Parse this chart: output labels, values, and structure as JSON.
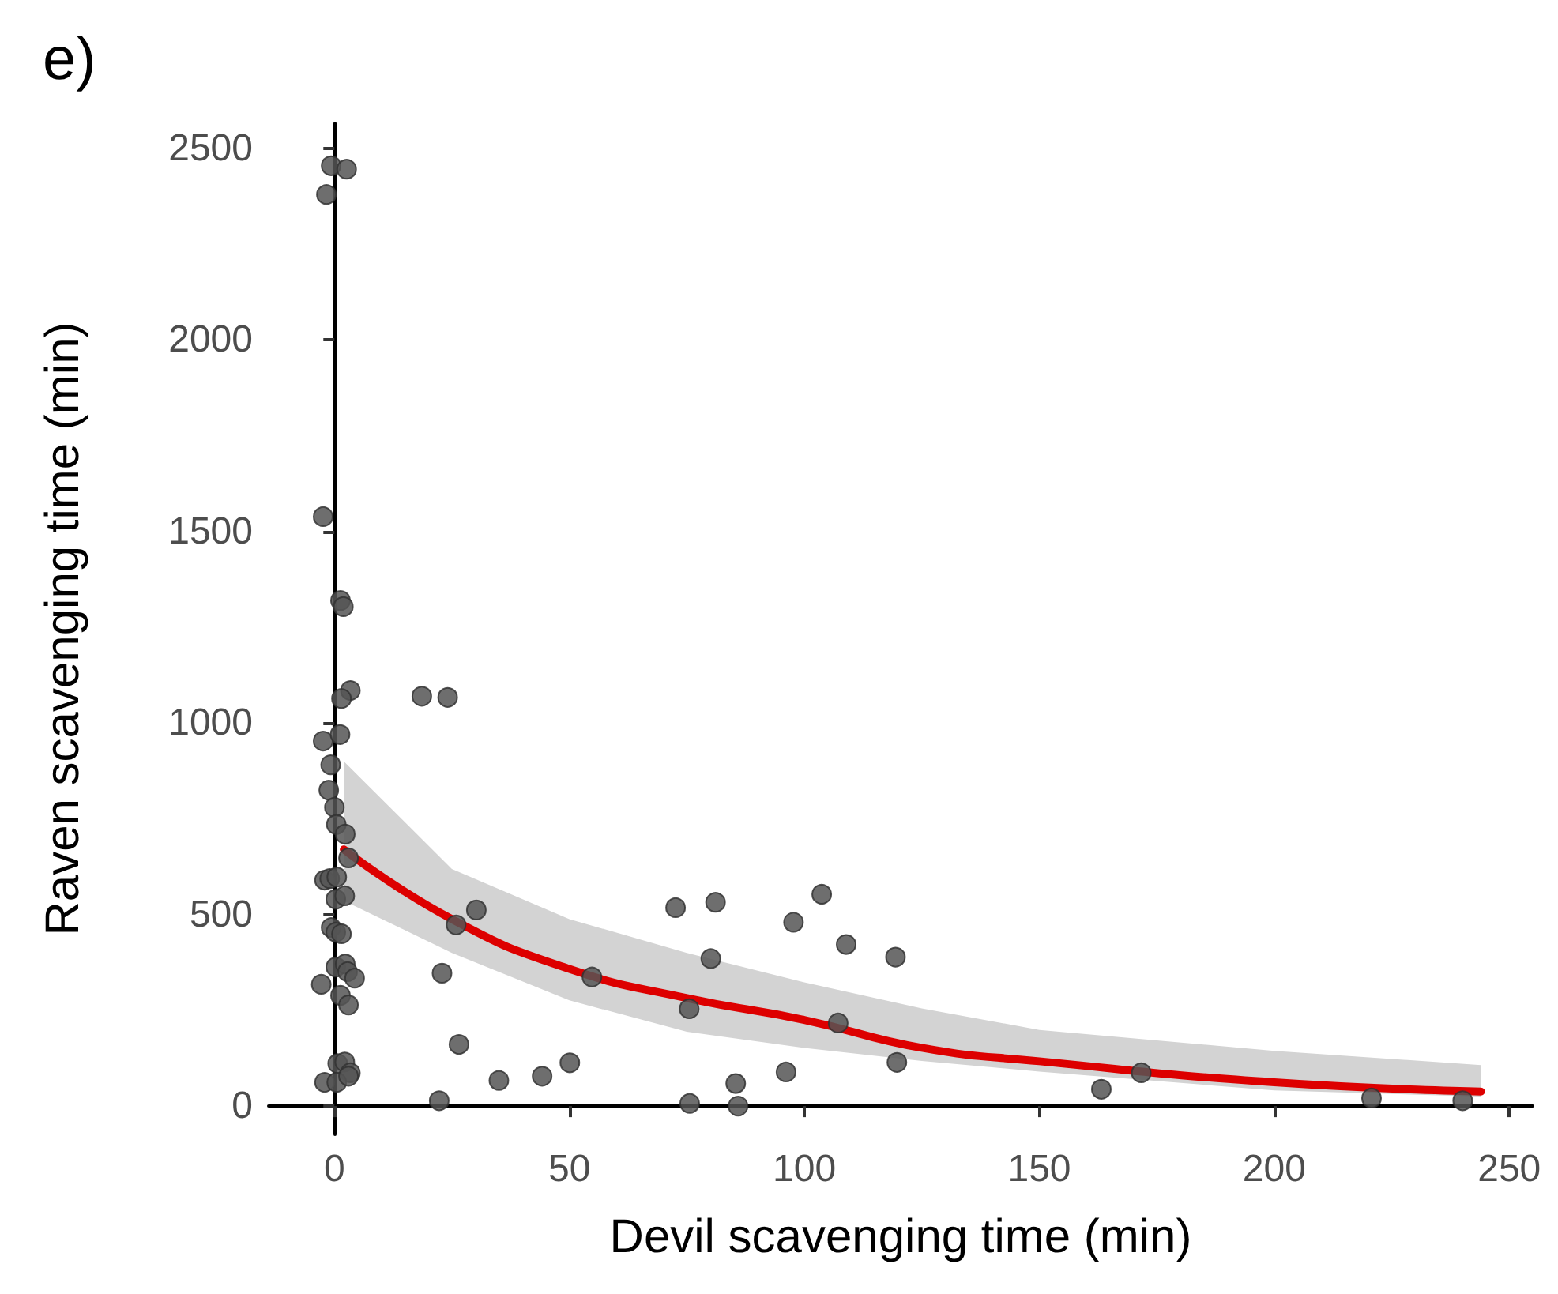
{
  "chart_data": {
    "type": "scatter",
    "title": "e)",
    "xlabel": "Devil scavenging time (min)",
    "ylabel": "Raven scavenging time (min)",
    "xlim": [
      -14,
      255
    ],
    "ylim": [
      -74,
      2566
    ],
    "xticks": [
      0,
      50,
      100,
      150,
      200,
      250
    ],
    "yticks": [
      0,
      500,
      1000,
      1500,
      2000,
      2500
    ],
    "grid": false,
    "series": [
      {
        "color": "#555555",
        "marker": "circle",
        "x": [
          -0.7,
          2.6,
          -1.7,
          -2.4,
          1.3,
          1.9,
          3.4,
          1.5,
          -2.4,
          1.2,
          -0.8,
          -1.2,
          0,
          0.4,
          2.3,
          3,
          -2.1,
          -1,
          0.5,
          0.3,
          2.2,
          -0.7,
          0.3,
          1.5,
          0.3,
          2.3,
          2.8,
          4.3,
          -2.8,
          1.3,
          3,
          0.7,
          2.2,
          3.4,
          -2.1,
          0.5,
          3,
          18.6,
          24.1,
          30.2,
          25.9,
          22.9,
          54.8,
          26.5,
          22.3,
          35,
          44.2,
          50.1,
          72.6,
          81.1,
          103.7,
          97.7,
          108.9,
          119.4,
          80.1,
          75.5,
          107.2,
          119.7,
          85.4,
          96.1,
          75.6,
          85.9,
          163.2,
          171.7,
          220.7,
          240.1
        ],
        "values": [
          2455,
          2446,
          2380,
          1539,
          1320,
          1304,
          1085,
          1064,
          953,
          970,
          891,
          825,
          780,
          735,
          710,
          648,
          590,
          594,
          598,
          540,
          549,
          466,
          454,
          450,
          363,
          371,
          351,
          334,
          318,
          289,
          264,
          111,
          115,
          87,
          62,
          62,
          78,
          1070,
          1067,
          512,
          473,
          347,
          337,
          161,
          14,
          67,
          78,
          113,
          518,
          532,
          553,
          480,
          422,
          389,
          385,
          254,
          217,
          114,
          59,
          89,
          7,
          0,
          44,
          87,
          21,
          14
        ]
      },
      {
        "type": "line",
        "color": "#dd0000",
        "line_style": "solid",
        "x": [
          2,
          25,
          50,
          75,
          100,
          125,
          150,
          200,
          244
        ],
        "values": [
          670,
          488,
          358,
          282,
          225,
          152,
          117,
          62,
          38
        ],
        "lower": [
          536,
          400,
          276,
          194,
          152,
          118,
          90,
          41,
          25
        ],
        "upper": [
          900,
          619,
          488,
          400,
          323,
          255,
          199,
          144,
          107
        ]
      }
    ]
  }
}
